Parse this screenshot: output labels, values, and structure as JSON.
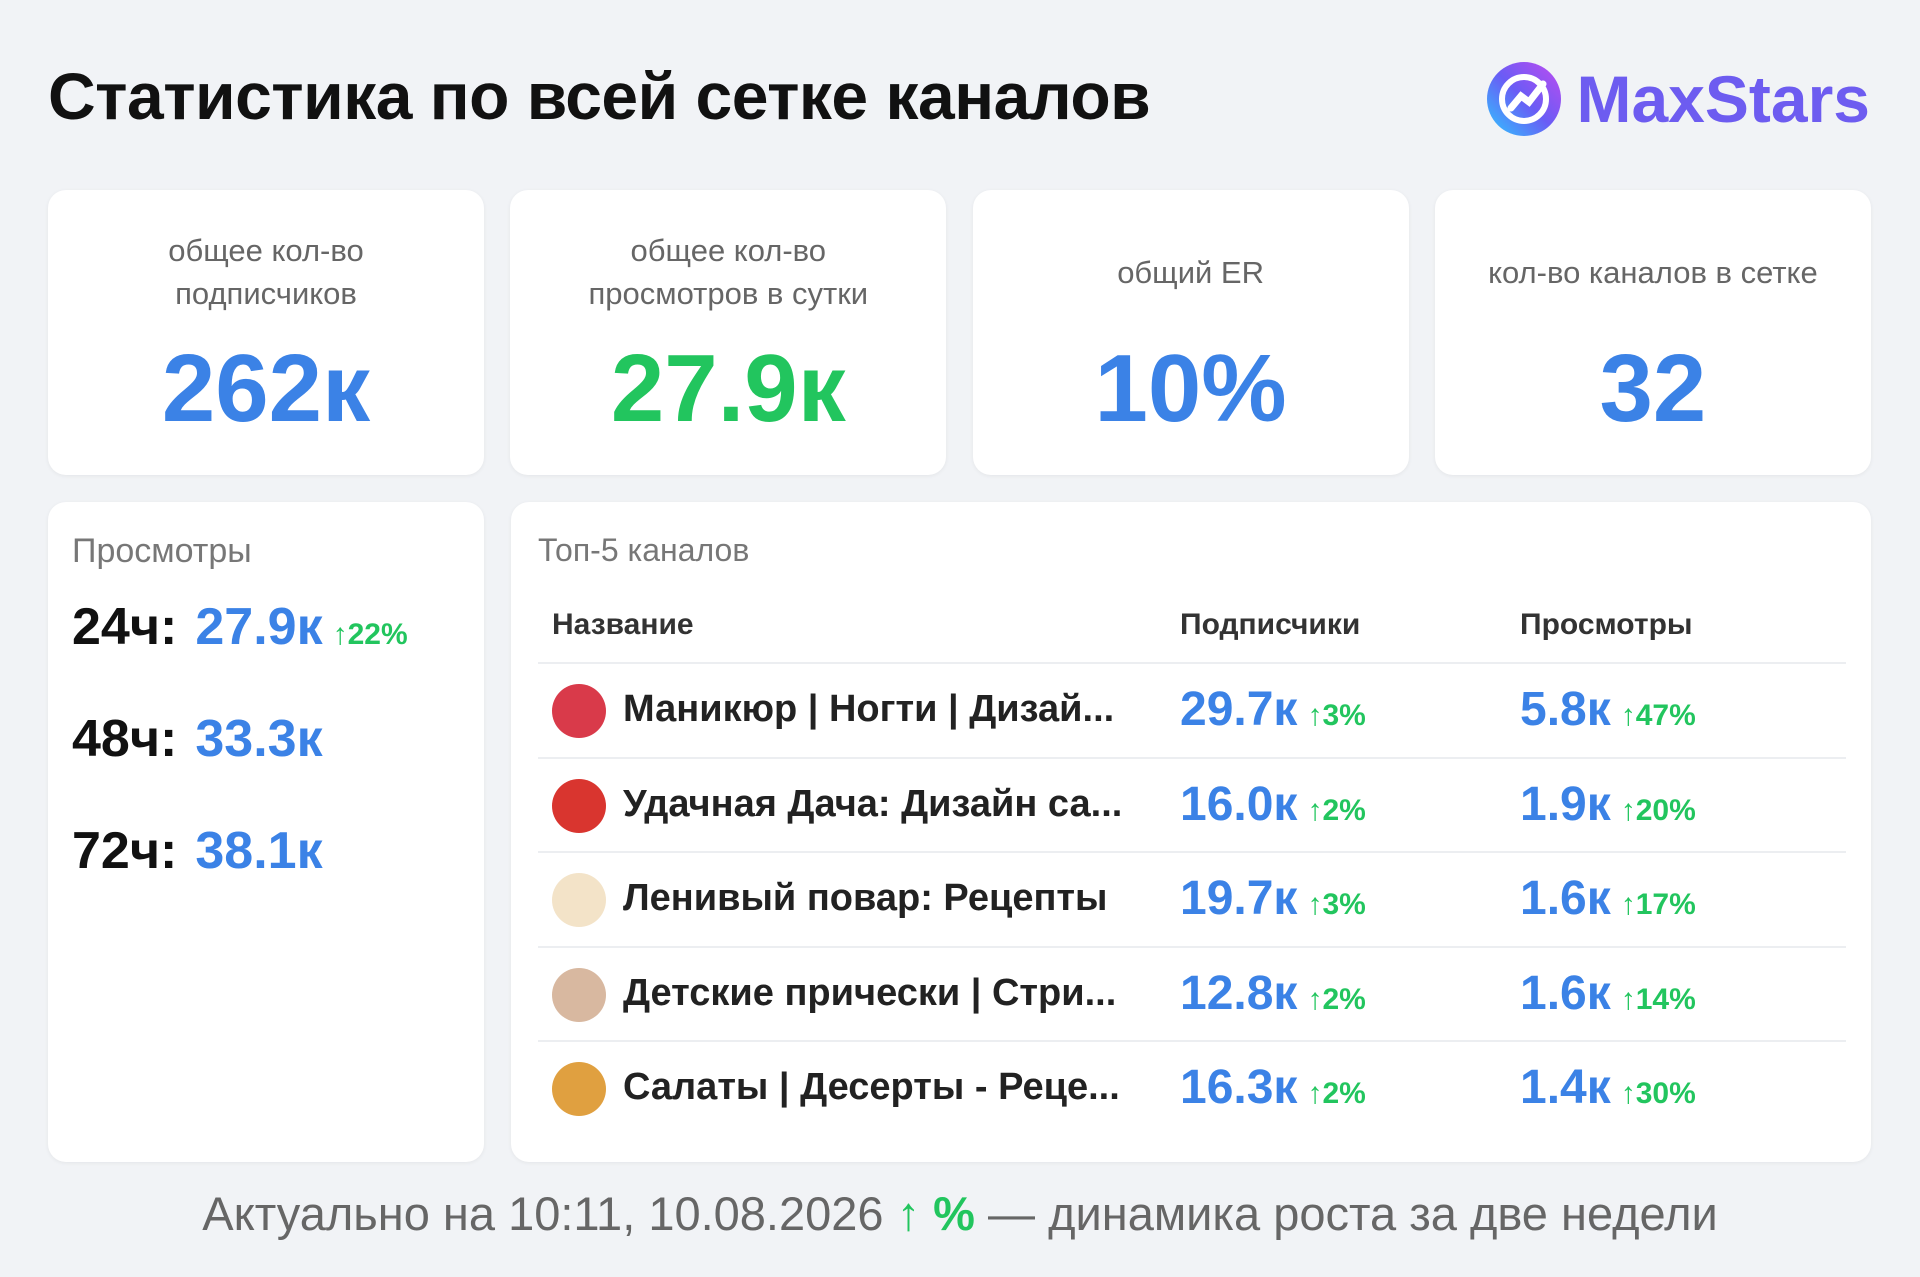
{
  "header": {
    "title": "Статистика по всей сетке каналов",
    "brand": "MaxStars"
  },
  "cards": [
    {
      "label": "общее кол-во подписчиков",
      "value": "262к",
      "color": "#3b82e6"
    },
    {
      "label": "общее кол-во просмотров в сутки",
      "value": "27.9к",
      "color": "#22c55e"
    },
    {
      "label": "общий ER",
      "value": "10%",
      "color": "#3b82e6"
    },
    {
      "label": "кол-во каналов в сетке",
      "value": "32",
      "color": "#3b82e6"
    }
  ],
  "views": {
    "title": "Просмотры",
    "rows": [
      {
        "label": "24ч:",
        "value": "27.9к",
        "change": "↑22%"
      },
      {
        "label": "48ч:",
        "value": "33.3к"
      },
      {
        "label": "72ч:",
        "value": "38.1к"
      }
    ]
  },
  "top": {
    "title": "Топ-5 каналов",
    "columns": [
      "Название",
      "Подписчики",
      "Просмотры"
    ],
    "rows": [
      {
        "name": "Маникюр | Ногти | Дизай...",
        "subscribers": "29.7к",
        "subscribers_change": "↑3%",
        "views": "5.8к",
        "views_change": "↑47%"
      },
      {
        "name": "Удачная Дача: Дизайн са...",
        "subscribers": "16.0к",
        "subscribers_change": "↑2%",
        "views": "1.9к",
        "views_change": "↑20%"
      },
      {
        "name": "Ленивый повар: Рецепты",
        "subscribers": "19.7к",
        "subscribers_change": "↑3%",
        "views": "1.6к",
        "views_change": "↑17%"
      },
      {
        "name": "Детские прически | Стри...",
        "subscribers": "12.8к",
        "subscribers_change": "↑2%",
        "views": "1.6к",
        "views_change": "↑14%"
      },
      {
        "name": "Салаты | Десерты - Реце...",
        "subscribers": "16.3к",
        "subscribers_change": "↑2%",
        "views": "1.4к",
        "views_change": "↑30%"
      }
    ]
  },
  "footer": {
    "prefix": "Актуально на 10:11, 10.08.2026",
    "legend": "↑ %",
    "suffix": "— динамика роста за две недели"
  }
}
